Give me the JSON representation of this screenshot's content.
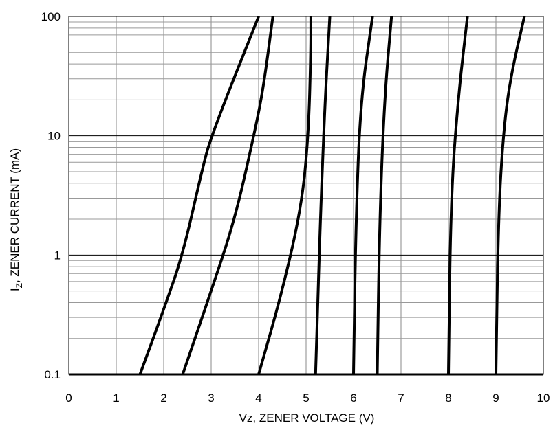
{
  "chart_data": {
    "type": "line",
    "xlabel": "Vz, ZENER VOLTAGE (V)",
    "ylabel_main": "I",
    "ylabel_sub": "Z",
    "ylabel_rest": ", ZENER CURRENT (mA)",
    "xlim": [
      0,
      10
    ],
    "ylim": [
      0.1,
      100
    ],
    "yscale": "log",
    "grid": true,
    "x_ticks": [
      "0",
      "1",
      "2",
      "3",
      "4",
      "5",
      "6",
      "7",
      "8",
      "9",
      "10"
    ],
    "y_ticks": [
      "0.1",
      "1",
      "10",
      "100"
    ],
    "series": [
      {
        "points": [
          [
            1.5,
            0.1
          ],
          [
            2.0,
            0.35
          ],
          [
            2.4,
            1.0
          ],
          [
            2.8,
            5.0
          ],
          [
            3.0,
            10
          ],
          [
            4.0,
            100
          ]
        ]
      },
      {
        "points": [
          [
            2.4,
            0.1
          ],
          [
            3.0,
            0.5
          ],
          [
            3.5,
            2.0
          ],
          [
            3.9,
            10
          ],
          [
            4.1,
            25
          ],
          [
            4.3,
            100
          ]
        ]
      },
      {
        "points": [
          [
            4.0,
            0.1
          ],
          [
            4.5,
            0.5
          ],
          [
            4.9,
            2.5
          ],
          [
            5.05,
            10
          ],
          [
            5.1,
            50
          ],
          [
            5.1,
            100
          ]
        ]
      },
      {
        "points": [
          [
            5.2,
            0.1
          ],
          [
            5.3,
            2.0
          ],
          [
            5.4,
            20
          ],
          [
            5.5,
            100
          ]
        ]
      },
      {
        "points": [
          [
            6.0,
            0.1
          ],
          [
            6.05,
            2.0
          ],
          [
            6.15,
            20
          ],
          [
            6.4,
            100
          ]
        ]
      },
      {
        "points": [
          [
            6.5,
            0.1
          ],
          [
            6.55,
            2.0
          ],
          [
            6.65,
            20
          ],
          [
            6.8,
            100
          ]
        ]
      },
      {
        "points": [
          [
            8.0,
            0.1
          ],
          [
            8.05,
            3.0
          ],
          [
            8.2,
            20
          ],
          [
            8.4,
            100
          ]
        ]
      },
      {
        "points": [
          [
            9.0,
            0.1
          ],
          [
            9.05,
            2.0
          ],
          [
            9.15,
            10
          ],
          [
            9.3,
            30
          ],
          [
            9.6,
            100
          ]
        ]
      }
    ]
  }
}
